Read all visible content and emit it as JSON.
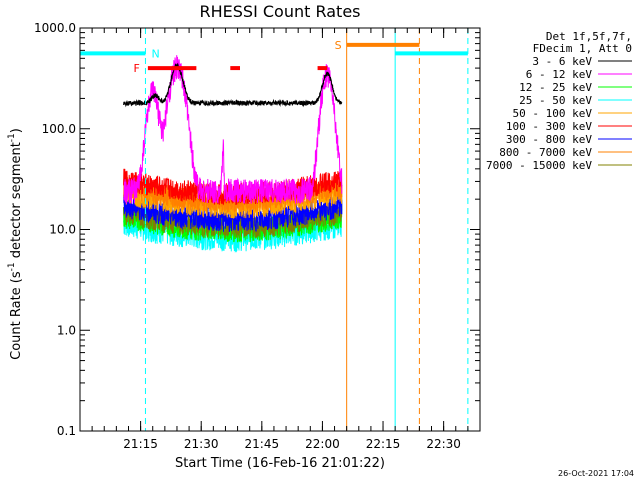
{
  "chart_data": {
    "type": "line",
    "title": "RHESSI Count Rates",
    "xlabel": "Start Time (16-Feb-16 21:01:22)",
    "ylabel_main": "Count Rate (s",
    "ylabel_sup1": "-1",
    "ylabel_mid": " detector segment",
    "ylabel_sup2": "-1",
    "ylabel_end": ")",
    "y_scale": "log",
    "ylim": [
      0.1,
      1000
    ],
    "xlim_minutes": [
      21.0,
      22.65
    ],
    "x_ticks": [
      {
        "t": 21.25,
        "label": "21:15"
      },
      {
        "t": 21.5,
        "label": "21:30"
      },
      {
        "t": 21.75,
        "label": "21:45"
      },
      {
        "t": 22.0,
        "label": "22:00"
      },
      {
        "t": 22.25,
        "label": "22:15"
      },
      {
        "t": 22.5,
        "label": "22:30"
      }
    ],
    "y_ticks": [
      {
        "v": 0.1,
        "label": "0.1"
      },
      {
        "v": 1,
        "label": "1.0"
      },
      {
        "v": 10,
        "label": "10.0"
      },
      {
        "v": 100,
        "label": "100.0"
      },
      {
        "v": 1000,
        "label": "1000.0"
      }
    ],
    "legend_header": [
      "Det 1f,5f,7f,",
      "FDecim 1, Att 0"
    ],
    "series": [
      {
        "name": "3 - 6 keV",
        "color": "#000000",
        "base": 180
      },
      {
        "name": "6 - 12 keV",
        "color": "#ff00ff",
        "base": 24
      },
      {
        "name": "12 - 25 keV",
        "color": "#00ff00",
        "base": 11
      },
      {
        "name": "25 - 50 keV",
        "color": "#00ffff",
        "base": 9.5
      },
      {
        "name": "50 - 100 keV",
        "color": "#ffa500",
        "base": 19
      },
      {
        "name": "100 - 300 keV",
        "color": "#ff0000",
        "base": 25
      },
      {
        "name": "300 - 800 keV",
        "color": "#0000ff",
        "base": 14
      },
      {
        "name": "800 - 7000 keV",
        "color": "#ff8000",
        "base": 21
      },
      {
        "name": "7000 - 15000 keV",
        "color": "#808000",
        "base": 12
      }
    ],
    "markers": [
      {
        "label": "N",
        "color": "#00ffff",
        "t": 21.27,
        "level": 560
      },
      {
        "label": "F",
        "color": "#ff0000",
        "t": 21.27,
        "level": 400
      },
      {
        "label": "S",
        "color": "#ff8000",
        "t": 22.1,
        "level": 680
      }
    ],
    "data_window": [
      21.18,
      22.08
    ],
    "timestamp": "26-Oct-2021 17:04"
  }
}
